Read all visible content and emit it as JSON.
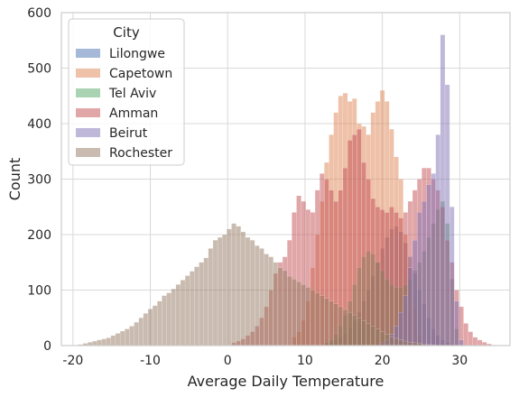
{
  "chart_data": {
    "type": "bar",
    "subtype": "histogram",
    "xlabel": "Average Daily Temperature",
    "ylabel": "Count",
    "xlim": [
      -21.5,
      36.5
    ],
    "ylim": [
      0,
      600
    ],
    "xticks": [
      -20,
      -10,
      0,
      10,
      20,
      30
    ],
    "yticks": [
      0,
      100,
      200,
      300,
      400,
      500,
      600
    ],
    "grid": true,
    "bin_width": 0.6,
    "legend": {
      "title": "City",
      "position": "top-left"
    },
    "series": [
      {
        "name": "Lilongwe",
        "color": "#4c72b0",
        "x": [
          12.5,
          13.1,
          13.7,
          14.3,
          14.9,
          15.5,
          16.1,
          16.7,
          17.3,
          17.9,
          18.5,
          19.1,
          19.7,
          20.3,
          20.9,
          21.5,
          22.1,
          22.7,
          23.3,
          23.9,
          24.5,
          25.1,
          25.7,
          26.3,
          26.9,
          27.5,
          28.1,
          28.7
        ],
        "values": [
          3,
          6,
          10,
          15,
          22,
          32,
          45,
          60,
          80,
          100,
          125,
          150,
          175,
          195,
          210,
          215,
          205,
          185,
          160,
          130,
          100,
          75,
          50,
          30,
          18,
          10,
          5,
          2
        ]
      },
      {
        "name": "Capetown",
        "color": "#dd8452",
        "x": [
          8.3,
          8.9,
          9.5,
          10.1,
          10.7,
          11.3,
          11.9,
          12.5,
          13.1,
          13.7,
          14.3,
          14.9,
          15.5,
          16.1,
          16.7,
          17.3,
          17.9,
          18.5,
          19.1,
          19.7,
          20.3,
          20.9,
          21.5,
          22.1,
          22.7,
          23.3,
          23.9,
          24.5
        ],
        "values": [
          15,
          25,
          45,
          80,
          140,
          200,
          260,
          330,
          380,
          420,
          450,
          455,
          440,
          445,
          400,
          395,
          380,
          420,
          440,
          460,
          440,
          390,
          340,
          300,
          200,
          140,
          70,
          20
        ]
      },
      {
        "name": "Tel Aviv",
        "color": "#55a868",
        "x": [
          12.5,
          13.1,
          13.7,
          14.3,
          14.9,
          15.5,
          16.1,
          16.7,
          17.3,
          17.9,
          18.5,
          19.1,
          19.7,
          20.3,
          20.9,
          21.5,
          22.1,
          22.7,
          23.3,
          23.9,
          24.5,
          25.1,
          25.7,
          26.3,
          26.9,
          27.5,
          28.1,
          28.7,
          29.3
        ],
        "values": [
          5,
          10,
          20,
          35,
          55,
          80,
          110,
          140,
          160,
          170,
          165,
          150,
          135,
          120,
          110,
          105,
          105,
          110,
          120,
          135,
          150,
          170,
          195,
          220,
          245,
          260,
          220,
          120,
          30
        ]
      },
      {
        "name": "Amman",
        "color": "#c44e52",
        "x": [
          0.5,
          1.1,
          1.7,
          2.3,
          2.9,
          3.5,
          4.1,
          4.7,
          5.3,
          5.9,
          6.5,
          7.1,
          7.7,
          8.3,
          8.9,
          9.5,
          10.1,
          10.7,
          11.3,
          11.9,
          12.5,
          13.1,
          13.7,
          14.3,
          14.9,
          15.5,
          16.1,
          16.7,
          17.3,
          17.9,
          18.5,
          19.1,
          19.7,
          20.3,
          20.9,
          21.5,
          22.1,
          22.7,
          23.3,
          23.9,
          24.5,
          25.1,
          25.7,
          26.3,
          26.9,
          27.5,
          28.1,
          28.7,
          29.3,
          29.9,
          30.5,
          31.1,
          31.7,
          32.3,
          32.9,
          33.5,
          34.1
        ],
        "values": [
          5,
          8,
          12,
          18,
          25,
          35,
          50,
          70,
          100,
          130,
          150,
          160,
          190,
          240,
          270,
          260,
          245,
          240,
          280,
          310,
          300,
          280,
          260,
          280,
          320,
          370,
          380,
          390,
          330,
          300,
          265,
          250,
          245,
          240,
          250,
          240,
          230,
          240,
          260,
          280,
          300,
          320,
          320,
          300,
          280,
          250,
          190,
          150,
          100,
          70,
          40,
          25,
          15,
          10,
          6,
          3,
          1
        ]
      },
      {
        "name": "Beirut",
        "color": "#8172b3",
        "x": [
          19.7,
          20.3,
          20.9,
          21.5,
          22.1,
          22.7,
          23.3,
          23.9,
          24.5,
          25.1,
          25.7,
          26.3,
          26.9,
          27.5,
          28.1,
          28.7,
          29.3,
          29.9
        ],
        "values": [
          5,
          10,
          20,
          35,
          60,
          90,
          140,
          190,
          240,
          260,
          290,
          310,
          380,
          560,
          470,
          250,
          80,
          10
        ]
      },
      {
        "name": "Rochester",
        "color": "#937860",
        "x": [
          -19.3,
          -18.7,
          -18.1,
          -17.5,
          -16.9,
          -16.3,
          -15.7,
          -15.1,
          -14.5,
          -13.9,
          -13.3,
          -12.7,
          -12.1,
          -11.5,
          -10.9,
          -10.3,
          -9.7,
          -9.1,
          -8.5,
          -7.9,
          -7.3,
          -6.7,
          -6.1,
          -5.5,
          -4.9,
          -4.3,
          -3.7,
          -3.1,
          -2.5,
          -1.9,
          -1.3,
          -0.7,
          -0.1,
          0.5,
          1.1,
          1.7,
          2.3,
          2.9,
          3.5,
          4.1,
          4.7,
          5.3,
          5.9,
          6.5,
          7.1,
          7.7,
          8.3,
          8.9,
          9.5,
          10.1,
          10.7,
          11.3,
          11.9,
          12.5,
          13.1,
          13.7,
          14.3,
          14.9,
          15.5,
          16.1,
          16.7,
          17.3,
          17.9,
          18.5,
          19.1,
          19.7,
          20.3,
          20.9,
          21.5,
          22.1,
          22.7,
          23.3,
          23.9,
          24.5,
          25.1,
          25.7,
          26.3
        ],
        "values": [
          2,
          4,
          6,
          8,
          10,
          12,
          14,
          18,
          22,
          26,
          30,
          35,
          42,
          50,
          58,
          66,
          72,
          80,
          90,
          95,
          102,
          110,
          118,
          126,
          134,
          142,
          150,
          158,
          175,
          190,
          195,
          200,
          210,
          220,
          215,
          205,
          195,
          190,
          180,
          175,
          165,
          160,
          150,
          140,
          135,
          125,
          120,
          115,
          110,
          105,
          100,
          95,
          90,
          85,
          80,
          75,
          70,
          65,
          60,
          55,
          50,
          45,
          40,
          35,
          30,
          25,
          20,
          16,
          13,
          10,
          8,
          6,
          5,
          4,
          3,
          2,
          1
        ]
      }
    ]
  }
}
